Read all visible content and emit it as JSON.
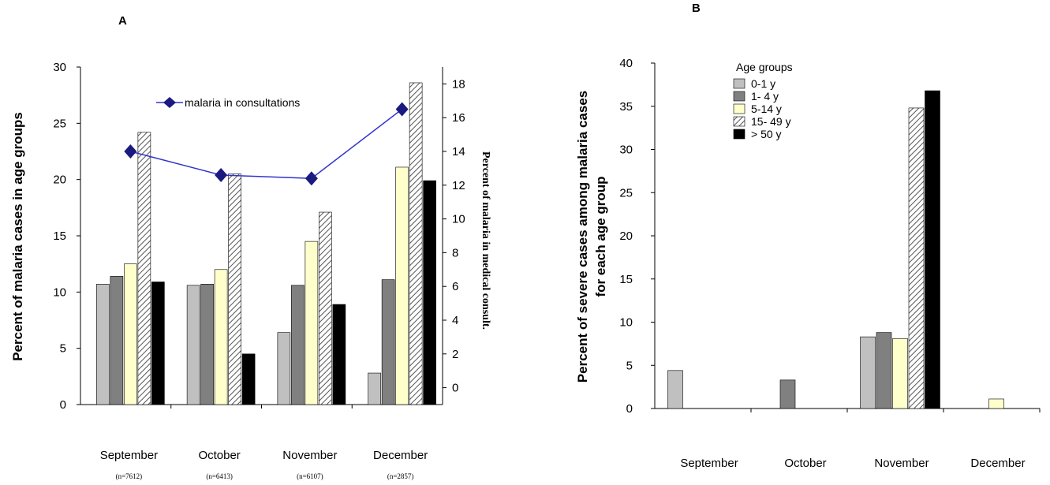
{
  "colors": {
    "s0": "#c0c0c0",
    "s1": "#808080",
    "s2": "#ffffcc",
    "s3": "hatch",
    "s4": "#000000",
    "line": "#3333cc",
    "marker": "#1a1a80"
  },
  "chart_data": [
    {
      "panel_label": "A",
      "type": "bar",
      "categories": [
        "September",
        "October",
        "November",
        "December"
      ],
      "category_sublabels": [
        "(n=7612)",
        "(n=6413)",
        "(n=6107)",
        "(n=2857)"
      ],
      "ylabel": "Percent of malaria cases in age groups",
      "y2label": "Percent of malaria in medical consult.",
      "ylim": [
        0,
        30
      ],
      "yticks": [
        "0",
        "5",
        "10",
        "15",
        "20",
        "25",
        "30"
      ],
      "y2lim": [
        -1,
        19
      ],
      "y2ticks": [
        "0",
        "2",
        "4",
        "6",
        "8",
        "10",
        "12",
        "14",
        "16",
        "18"
      ],
      "series": [
        {
          "values": [
            10.7,
            10.6,
            6.4,
            2.8
          ]
        },
        {
          "values": [
            11.4,
            10.7,
            10.6,
            11.1
          ]
        },
        {
          "values": [
            12.5,
            12.0,
            14.5,
            21.1
          ]
        },
        {
          "values": [
            24.2,
            20.5,
            17.1,
            28.6
          ]
        },
        {
          "values": [
            10.9,
            4.5,
            8.9,
            19.9
          ]
        }
      ],
      "line_series": {
        "name": "malaria in consultations",
        "axis": "right",
        "values": [
          14.0,
          12.6,
          12.4,
          16.5
        ]
      }
    },
    {
      "panel_label": "B",
      "type": "bar",
      "categories": [
        "September",
        "October",
        "November",
        "December"
      ],
      "ylabel": "Percent of severe cases among malaria cases for each age group",
      "ylabel_lines": [
        "Percent of severe cases among malaria cases",
        "for each age group"
      ],
      "ylim": [
        0,
        40
      ],
      "yticks": [
        "0",
        "5",
        "10",
        "15",
        "20",
        "25",
        "30",
        "35",
        "40"
      ],
      "legend_title": "Age groups",
      "legend_position": "top-left",
      "series": [
        {
          "name": "0-1 y",
          "values": [
            4.4,
            0,
            8.3,
            0
          ]
        },
        {
          "name": "1-  4 y",
          "values": [
            0,
            3.3,
            8.8,
            0
          ]
        },
        {
          "name": "5-14 y",
          "values": [
            0,
            0,
            8.1,
            1.1
          ]
        },
        {
          "name": "15- 49 y",
          "values": [
            0,
            0,
            34.8,
            0
          ]
        },
        {
          "name": "> 50 y",
          "values": [
            0,
            0,
            36.8,
            0
          ]
        }
      ]
    }
  ]
}
